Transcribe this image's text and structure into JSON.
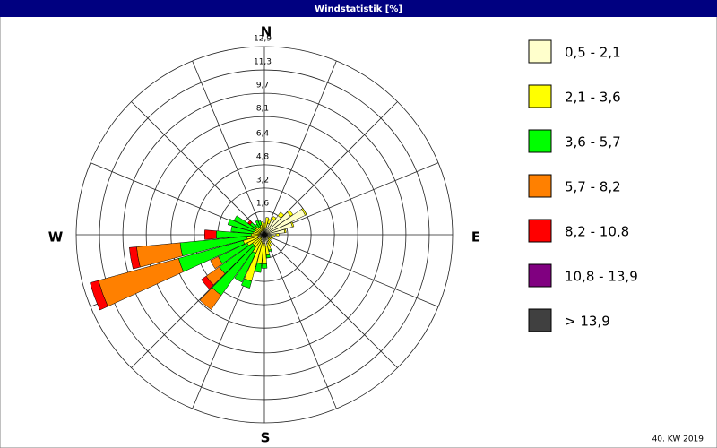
{
  "chart_data": {
    "type": "windrose",
    "title": "Windstatistik [%]",
    "compass": [
      "N",
      "E",
      "S",
      "W"
    ],
    "x": [
      0,
      10,
      20,
      30,
      40,
      50,
      60,
      70,
      80,
      90,
      100,
      110,
      120,
      130,
      140,
      150,
      160,
      170,
      180,
      190,
      200,
      210,
      220,
      230,
      240,
      250,
      260,
      270,
      280,
      290,
      300,
      310,
      320,
      330,
      340,
      350
    ],
    "series": [
      {
        "name": "0,5 - 2,1",
        "color": "#ffffcc",
        "values": [
          0.2,
          0.5,
          0.8,
          1.2,
          1.6,
          2.2,
          3.1,
          2.0,
          1.4,
          0.8,
          0.5,
          0.4,
          0.4,
          0.3,
          0.4,
          0.5,
          0.6,
          0.8,
          0.6,
          0.5,
          0.5,
          0.4,
          0.3,
          0.3,
          0.5,
          0.5,
          0.4,
          0.3,
          0.3,
          0.3,
          0.3,
          0.3,
          0.3,
          0.3,
          0.4,
          0.3
        ]
      },
      {
        "name": "2,1 - 3,6",
        "color": "#ffff00",
        "values": [
          0.6,
          0.7,
          0.3,
          0.2,
          0.3,
          0.2,
          0.1,
          0.1,
          0.1,
          0.2,
          0.2,
          0.2,
          0.2,
          0.2,
          0.3,
          0.4,
          0.5,
          0.6,
          1.4,
          1.5,
          2.8,
          1.0,
          0.8,
          0.7,
          0.8,
          1.0,
          0.8,
          0.6,
          0.5,
          0.4,
          0.4,
          0.5,
          0.3,
          0.3,
          0.3,
          0.6
        ]
      },
      {
        "name": "3,6 - 5,7",
        "color": "#00ff00",
        "values": [
          0,
          0,
          0,
          0,
          0,
          0,
          0,
          0,
          0,
          0,
          0,
          0,
          0,
          0,
          0,
          0,
          0.1,
          0.2,
          0.3,
          0.6,
          0.5,
          2.2,
          4.0,
          2.8,
          2.2,
          4.6,
          4.6,
          2.4,
          1.5,
          1.9,
          1.6,
          0.4,
          0.3,
          0.5,
          0.3,
          0
        ]
      },
      {
        "name": "5,7 - 8,2",
        "color": "#ff8000",
        "values": [
          0,
          0,
          0,
          0,
          0,
          0,
          0,
          0,
          0,
          0,
          0,
          0,
          0,
          0,
          0,
          0,
          0,
          0,
          0,
          0,
          0,
          0,
          1.2,
          1.1,
          0.6,
          5.7,
          3.0,
          0,
          0,
          0,
          0,
          0,
          0,
          0,
          0,
          0
        ]
      },
      {
        "name": "8,2 - 10,8",
        "color": "#ff0000",
        "values": [
          0,
          0,
          0,
          0,
          0,
          0,
          0,
          0,
          0,
          0,
          0,
          0,
          0,
          0,
          0,
          0,
          0,
          0,
          0,
          0,
          0,
          0,
          0,
          0.4,
          0,
          0.6,
          0.5,
          0.8,
          0,
          0,
          0,
          0.2,
          0,
          0,
          0,
          0
        ]
      },
      {
        "name": "10,8 - 13,9",
        "color": "#800080",
        "values": [
          0,
          0,
          0,
          0,
          0,
          0,
          0,
          0,
          0,
          0,
          0,
          0,
          0,
          0,
          0,
          0,
          0,
          0,
          0,
          0,
          0,
          0,
          0,
          0,
          0,
          0,
          0,
          0,
          0,
          0,
          0,
          0,
          0,
          0,
          0,
          0
        ]
      },
      {
        "name": " > 13,9",
        "color": "#404040",
        "values": [
          0,
          0,
          0,
          0,
          0,
          0,
          0,
          0,
          0,
          0,
          0,
          0,
          0,
          0,
          0,
          0,
          0,
          0,
          0,
          0,
          0,
          0,
          0,
          0,
          0,
          0,
          0,
          0,
          0,
          0,
          0,
          0,
          0,
          0,
          0,
          0
        ]
      }
    ],
    "rlim": [
      0,
      12.9
    ],
    "rticks": [
      {
        "value": 1.6,
        "label": "1,6"
      },
      {
        "value": 3.2,
        "label": "3,2"
      },
      {
        "value": 4.8,
        "label": "4,8"
      },
      {
        "value": 6.4,
        "label": "6,4"
      },
      {
        "value": 8.1,
        "label": "8,1"
      },
      {
        "value": 9.7,
        "label": "9,7"
      },
      {
        "value": 11.3,
        "label": "11,3"
      },
      {
        "value": 12.9,
        "label": "12,9"
      }
    ],
    "footer": "40. KW 2019"
  }
}
